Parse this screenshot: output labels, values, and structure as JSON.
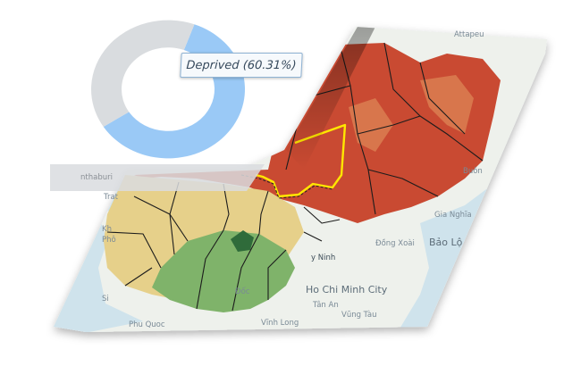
{
  "donut": {
    "segments": [
      {
        "label": "Deprived",
        "percent": 60.31,
        "color": "#8fc3f5"
      },
      {
        "label": "",
        "percent": 39.69,
        "color": "#d5d8db"
      }
    ],
    "tooltip": "Deprived (60.31%)"
  },
  "map": {
    "colors": {
      "water": "#cfe3ec",
      "land": "#eef1ec",
      "high": "#c94a32",
      "mid": "#e6d08a",
      "low": "#7fb36a",
      "highlight": "#ffe600"
    },
    "places": [
      {
        "id": "attapeu",
        "name": "Attapeu"
      },
      {
        "id": "nonthaburi",
        "name": "nthaburi"
      },
      {
        "id": "trat",
        "name": "Trat"
      },
      {
        "id": "buon",
        "name": "Buôn"
      },
      {
        "id": "gia-nghia",
        "name": "Gia Nghĩa"
      },
      {
        "id": "dong-xoai",
        "name": "Đồng Xoài"
      },
      {
        "id": "bao-loc",
        "name": "Bảo Lộ"
      },
      {
        "id": "tay-ninh",
        "name": "y Ninh"
      },
      {
        "id": "kh",
        "name": "Kh"
      },
      {
        "id": "pho",
        "name": "Phô"
      },
      {
        "id": "si",
        "name": "Si"
      },
      {
        "id": "hcmc",
        "name": "Ho Chi Minh City"
      },
      {
        "id": "doc",
        "name": "Đốc"
      },
      {
        "id": "tan-an",
        "name": "Tân An"
      },
      {
        "id": "phu-quoc",
        "name": "Phu Quoc"
      },
      {
        "id": "vung-tau",
        "name": "Vũng Tàu"
      },
      {
        "id": "vinh-long",
        "name": "Vĩnh Long"
      }
    ]
  }
}
